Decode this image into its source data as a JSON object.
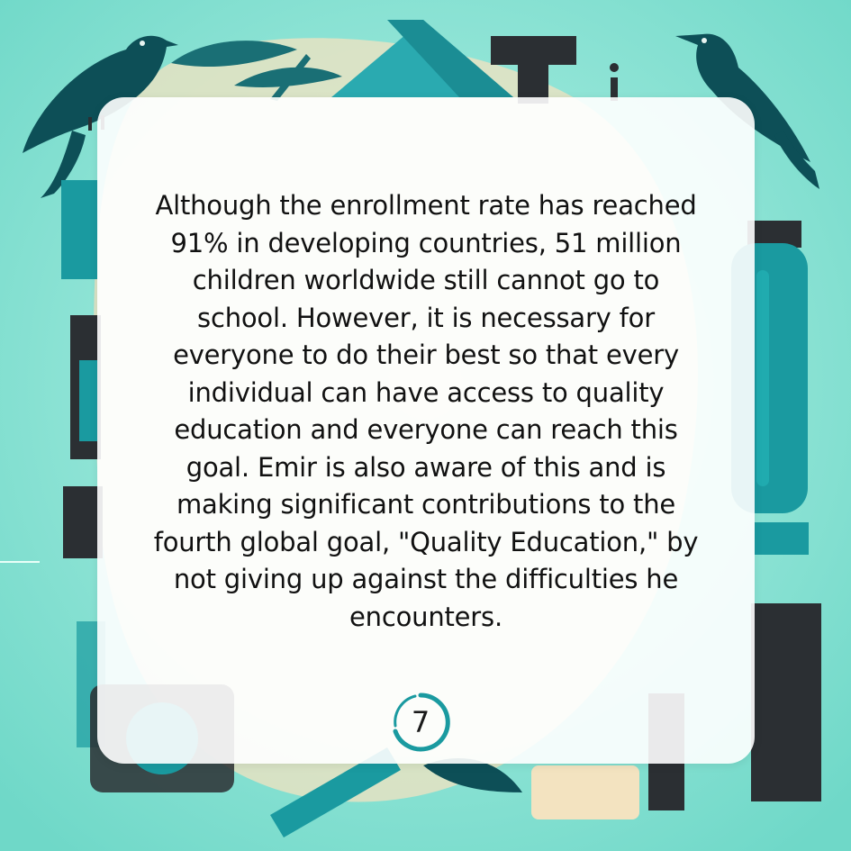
{
  "card": {
    "body_lines": [
      "Although the enrollment rate has reached",
      "91% in developing countries, 51 million",
      "children worldwide still cannot go to",
      "school. However, it is necessary for",
      "everyone to do their best so that every",
      "individual can have access to quality",
      "education and everyone can reach this",
      "goal. Emir is also aware of this and is",
      "making significant contributions to the",
      "fourth global goal, \"Quality Education,\" by",
      "not giving up against the difficulties he",
      "encounters."
    ],
    "page_number": "7"
  },
  "colors": {
    "background": "#7fe0d0",
    "accent_teal": "#1a9aa0",
    "dark_teal": "#0d4f57",
    "charcoal": "#2b2f33",
    "cream": "#f3e3c0",
    "card": "#ffffff"
  },
  "decorations": {
    "icons": [
      "crow-icon",
      "crow-icon",
      "letter-t-icon",
      "book-tent-icon",
      "bottle-icon",
      "pencil-icon",
      "leaf-icon",
      "letter-i-icon"
    ]
  }
}
